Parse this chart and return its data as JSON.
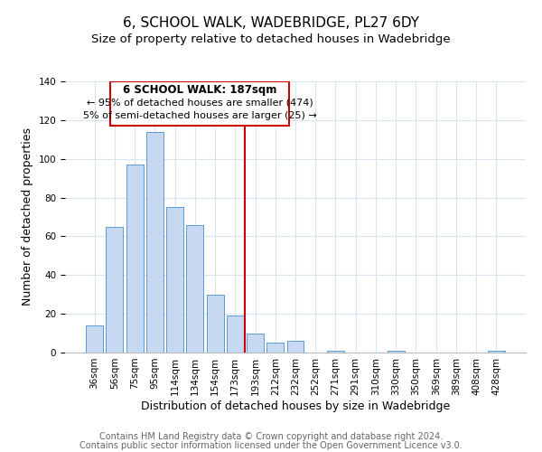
{
  "title": "6, SCHOOL WALK, WADEBRIDGE, PL27 6DY",
  "subtitle": "Size of property relative to detached houses in Wadebridge",
  "xlabel": "Distribution of detached houses by size in Wadebridge",
  "ylabel": "Number of detached properties",
  "bar_labels": [
    "36sqm",
    "56sqm",
    "75sqm",
    "95sqm",
    "114sqm",
    "134sqm",
    "154sqm",
    "173sqm",
    "193sqm",
    "212sqm",
    "232sqm",
    "252sqm",
    "271sqm",
    "291sqm",
    "310sqm",
    "330sqm",
    "350sqm",
    "369sqm",
    "389sqm",
    "408sqm",
    "428sqm"
  ],
  "bar_heights": [
    14,
    65,
    97,
    114,
    75,
    66,
    30,
    19,
    10,
    5,
    6,
    0,
    1,
    0,
    0,
    1,
    0,
    0,
    0,
    0,
    1
  ],
  "bar_color": "#c6d9f0",
  "bar_edge_color": "#5a9bd5",
  "ylim": [
    0,
    140
  ],
  "yticks": [
    0,
    20,
    40,
    60,
    80,
    100,
    120,
    140
  ],
  "annotation_title": "6 SCHOOL WALK: 187sqm",
  "annotation_line1": "← 95% of detached houses are smaller (474)",
  "annotation_line2": "5% of semi-detached houses are larger (25) →",
  "annotation_box_edge": "#cc0000",
  "footer_line1": "Contains HM Land Registry data © Crown copyright and database right 2024.",
  "footer_line2": "Contains public sector information licensed under the Open Government Licence v3.0.",
  "background_color": "#ffffff",
  "grid_color": "#d8e4f0",
  "title_fontsize": 11,
  "subtitle_fontsize": 9.5,
  "axis_label_fontsize": 9,
  "tick_fontsize": 7.5,
  "footer_fontsize": 7
}
